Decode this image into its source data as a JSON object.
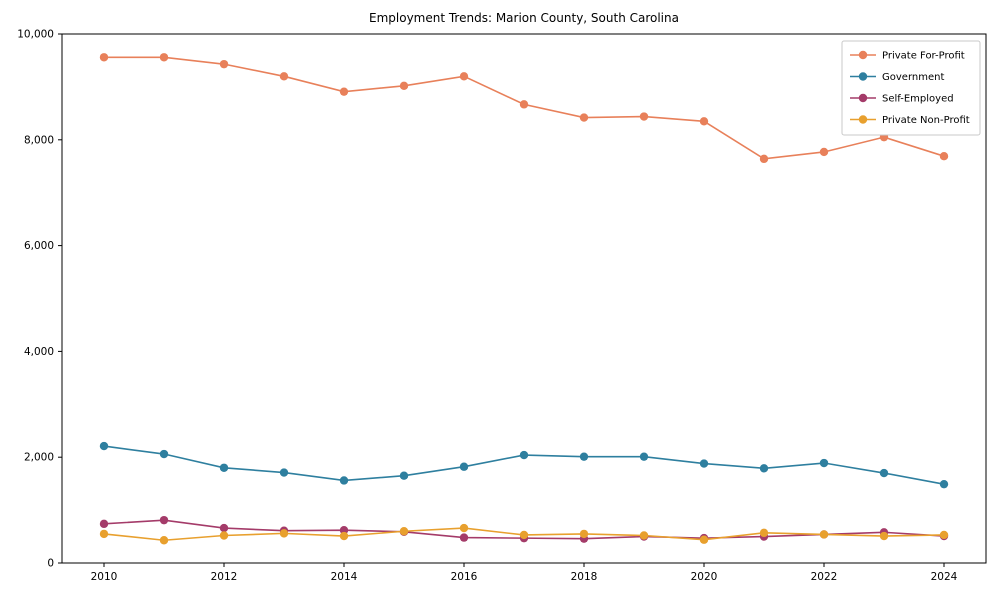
{
  "chart_data": {
    "type": "line",
    "title": "Employment Trends: Marion County, South Carolina",
    "xlabel": "",
    "ylabel": "",
    "x": [
      2010,
      2011,
      2012,
      2013,
      2014,
      2015,
      2016,
      2017,
      2018,
      2019,
      2020,
      2021,
      2022,
      2023,
      2024
    ],
    "series": [
      {
        "name": "Private For-Profit",
        "color": "#e8805a",
        "values": [
          9560,
          9560,
          9430,
          9200,
          8910,
          9020,
          9200,
          8670,
          8420,
          8440,
          8350,
          7640,
          7770,
          8050,
          7690
        ]
      },
      {
        "name": "Government",
        "color": "#2e7f9f",
        "values": [
          2210,
          2060,
          1800,
          1710,
          1560,
          1650,
          1820,
          2040,
          2010,
          2010,
          1880,
          1790,
          1890,
          1700,
          1490
        ]
      },
      {
        "name": "Self-Employed",
        "color": "#a43b69",
        "values": [
          740,
          810,
          660,
          610,
          620,
          590,
          480,
          470,
          460,
          500,
          470,
          500,
          540,
          580,
          510
        ]
      },
      {
        "name": "Private Non-Profit",
        "color": "#e8a02e",
        "values": [
          550,
          430,
          520,
          560,
          510,
          600,
          660,
          530,
          550,
          520,
          440,
          570,
          540,
          510,
          530
        ]
      }
    ],
    "xticks": [
      2010,
      2012,
      2014,
      2016,
      2018,
      2020,
      2022,
      2024
    ],
    "yticks": [
      0,
      2000,
      4000,
      6000,
      8000,
      10000
    ],
    "ytick_labels": [
      "0",
      "2,000",
      "4,000",
      "6,000",
      "8,000",
      "10,000"
    ],
    "xlim": [
      2009.3,
      2024.7
    ],
    "ylim": [
      0,
      10000
    ],
    "grid": false,
    "legend_position": "top-right",
    "marker": "circle"
  }
}
